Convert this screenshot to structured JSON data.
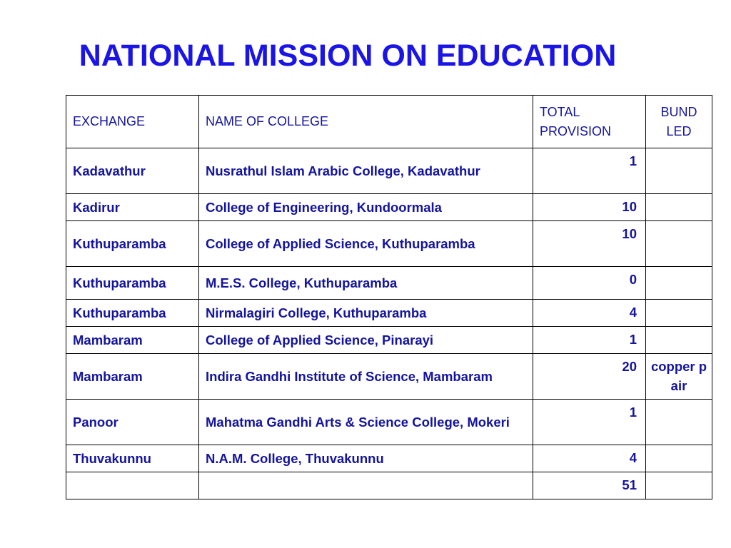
{
  "title": "NATIONAL MISSION ON EDUCATION",
  "table": {
    "headers": {
      "exchange": "EXCHANGE",
      "college": "NAME OF COLLEGE",
      "total": "TOTAL PROVISION",
      "bundled": "BUND LED"
    },
    "rows": [
      {
        "exchange": "Kadavathur",
        "college": "Nusrathul Islam Arabic College, Kadavathur",
        "total": "1",
        "bundled": ""
      },
      {
        "exchange": "Kadirur",
        "college": "College of Engineering, Kundoormala",
        "total": "10",
        "bundled": ""
      },
      {
        "exchange": "Kuthuparamba",
        "college": "College of Applied Science, Kuthuparamba",
        "total": "10",
        "bundled": ""
      },
      {
        "exchange": "Kuthuparamba",
        "college": "M.E.S. College, Kuthuparamba",
        "total": "0",
        "bundled": ""
      },
      {
        "exchange": "Kuthuparamba",
        "college": "Nirmalagiri College, Kuthuparamba",
        "total": "4",
        "bundled": ""
      },
      {
        "exchange": "Mambaram",
        "college": "College of Applied Science, Pinarayi",
        "total": "1",
        "bundled": ""
      },
      {
        "exchange": "Mambaram",
        "college": "Indira Gandhi Institute of Science, Mambaram",
        "total": "20",
        "bundled": "copper pair"
      },
      {
        "exchange": "Panoor",
        "college": "Mahatma Gandhi Arts & Science College, Mokeri",
        "total": "1",
        "bundled": ""
      },
      {
        "exchange": "Thuvakunnu",
        "college": "N.A.M. College, Thuvakunnu",
        "total": "4",
        "bundled": ""
      }
    ],
    "total_row": {
      "exchange": "",
      "college": "",
      "total": "51",
      "bundled": ""
    }
  }
}
